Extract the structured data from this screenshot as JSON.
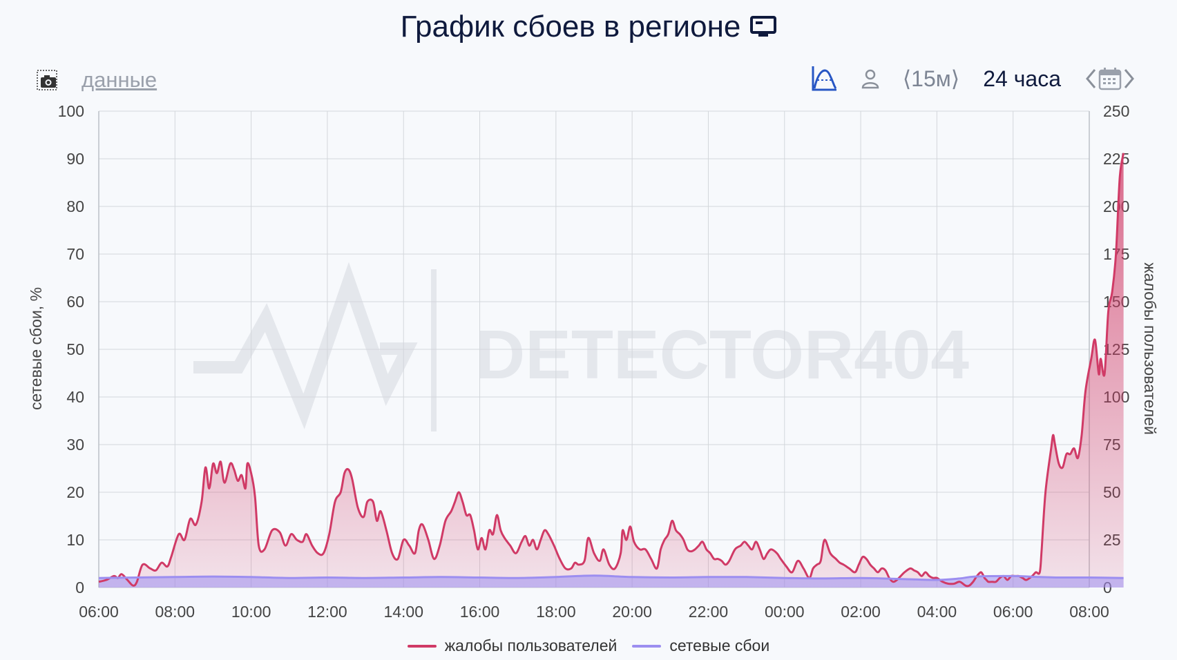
{
  "header": {
    "title": "График сбоев в регионе",
    "data_link": "данные",
    "period_small": "⟨15м⟩",
    "period_large": "24 часа"
  },
  "icons": {
    "screenshot": "camera-icon",
    "title": "monitor-icon",
    "chart_mode": "curve-chart-icon",
    "user": "user-icon",
    "calendar": "calendar-icon",
    "prev": "chevron-left-icon",
    "next": "chevron-right-icon"
  },
  "colors": {
    "complaints": "#d03a66",
    "network": "#9c8ef0",
    "accent": "#2756c4"
  },
  "chart_data": {
    "type": "area",
    "watermark": "DETECTOR404",
    "x_ticks": [
      "06:00",
      "08:00",
      "10:00",
      "12:00",
      "14:00",
      "16:00",
      "18:00",
      "20:00",
      "22:00",
      "00:00",
      "02:00",
      "04:00",
      "06:00",
      "08:00"
    ],
    "xlim_hours": [
      0,
      26
    ],
    "y_left": {
      "label": "сетевые сбои, %",
      "ticks": [
        0,
        10,
        20,
        30,
        40,
        50,
        60,
        70,
        80,
        90,
        100
      ],
      "ylim": [
        0,
        100
      ]
    },
    "y_right": {
      "label": "жалобы пользователей",
      "ticks": [
        0,
        25,
        50,
        75,
        100,
        125,
        150,
        175,
        200,
        225,
        250
      ],
      "ylim": [
        0,
        250
      ]
    },
    "grid": true,
    "legend_position": "bottom-center",
    "series": [
      {
        "name": "жалобы пользователей",
        "axis": "right",
        "points": [
          [
            0,
            3
          ],
          [
            0.2,
            4
          ],
          [
            0.4,
            6
          ],
          [
            0.5,
            5
          ],
          [
            0.6,
            7
          ],
          [
            0.75,
            4
          ],
          [
            0.9,
            1
          ],
          [
            1.0,
            3
          ],
          [
            1.15,
            12
          ],
          [
            1.35,
            10
          ],
          [
            1.5,
            9
          ],
          [
            1.65,
            13
          ],
          [
            1.8,
            11
          ],
          [
            1.9,
            16
          ],
          [
            2.1,
            28
          ],
          [
            2.25,
            25
          ],
          [
            2.4,
            36
          ],
          [
            2.55,
            33
          ],
          [
            2.7,
            45
          ],
          [
            2.8,
            63
          ],
          [
            2.9,
            52
          ],
          [
            3.0,
            65
          ],
          [
            3.1,
            60
          ],
          [
            3.2,
            66
          ],
          [
            3.3,
            55
          ],
          [
            3.45,
            65
          ],
          [
            3.55,
            62
          ],
          [
            3.65,
            56
          ],
          [
            3.75,
            59
          ],
          [
            3.85,
            52
          ],
          [
            3.9,
            65
          ],
          [
            4.0,
            60
          ],
          [
            4.1,
            48
          ],
          [
            4.2,
            22
          ],
          [
            4.35,
            20
          ],
          [
            4.55,
            30
          ],
          [
            4.75,
            29
          ],
          [
            4.9,
            22
          ],
          [
            5.05,
            28
          ],
          [
            5.2,
            25
          ],
          [
            5.35,
            24
          ],
          [
            5.45,
            28
          ],
          [
            5.6,
            22
          ],
          [
            5.75,
            18
          ],
          [
            5.9,
            18
          ],
          [
            6.05,
            28
          ],
          [
            6.2,
            45
          ],
          [
            6.35,
            50
          ],
          [
            6.45,
            60
          ],
          [
            6.55,
            62
          ],
          [
            6.65,
            57
          ],
          [
            6.8,
            42
          ],
          [
            6.95,
            37
          ],
          [
            7.05,
            45
          ],
          [
            7.2,
            45
          ],
          [
            7.3,
            35
          ],
          [
            7.4,
            40
          ],
          [
            7.55,
            30
          ],
          [
            7.7,
            18
          ],
          [
            7.85,
            15
          ],
          [
            8.0,
            25
          ],
          [
            8.15,
            22
          ],
          [
            8.3,
            18
          ],
          [
            8.4,
            30
          ],
          [
            8.5,
            33
          ],
          [
            8.65,
            25
          ],
          [
            8.8,
            15
          ],
          [
            8.95,
            22
          ],
          [
            9.1,
            35
          ],
          [
            9.25,
            40
          ],
          [
            9.35,
            45
          ],
          [
            9.45,
            50
          ],
          [
            9.55,
            45
          ],
          [
            9.65,
            38
          ],
          [
            9.75,
            38
          ],
          [
            9.85,
            30
          ],
          [
            9.95,
            20
          ],
          [
            10.05,
            26
          ],
          [
            10.15,
            20
          ],
          [
            10.25,
            30
          ],
          [
            10.35,
            28
          ],
          [
            10.45,
            38
          ],
          [
            10.55,
            30
          ],
          [
            10.65,
            26
          ],
          [
            10.8,
            22
          ],
          [
            10.95,
            18
          ],
          [
            11.1,
            24
          ],
          [
            11.2,
            27
          ],
          [
            11.3,
            22
          ],
          [
            11.4,
            25
          ],
          [
            11.5,
            20
          ],
          [
            11.6,
            25
          ],
          [
            11.7,
            30
          ],
          [
            11.8,
            28
          ],
          [
            11.95,
            22
          ],
          [
            12.1,
            15
          ],
          [
            12.25,
            10
          ],
          [
            12.4,
            10
          ],
          [
            12.5,
            13
          ],
          [
            12.6,
            12
          ],
          [
            12.75,
            14
          ],
          [
            12.85,
            26
          ],
          [
            13.0,
            18
          ],
          [
            13.15,
            14
          ],
          [
            13.25,
            20
          ],
          [
            13.4,
            12
          ],
          [
            13.55,
            10
          ],
          [
            13.7,
            18
          ],
          [
            13.75,
            30
          ],
          [
            13.85,
            25
          ],
          [
            13.95,
            32
          ],
          [
            14.05,
            24
          ],
          [
            14.2,
            20
          ],
          [
            14.35,
            20
          ],
          [
            14.5,
            15
          ],
          [
            14.65,
            10
          ],
          [
            14.75,
            20
          ],
          [
            14.85,
            25
          ],
          [
            14.95,
            28
          ],
          [
            15.05,
            35
          ],
          [
            15.15,
            30
          ],
          [
            15.25,
            28
          ],
          [
            15.35,
            25
          ],
          [
            15.45,
            20
          ],
          [
            15.55,
            19
          ],
          [
            15.65,
            20
          ],
          [
            15.75,
            22
          ],
          [
            15.85,
            24
          ],
          [
            15.95,
            20
          ],
          [
            16.05,
            18
          ],
          [
            16.15,
            15
          ],
          [
            16.25,
            15
          ],
          [
            16.35,
            14
          ],
          [
            16.45,
            12
          ],
          [
            16.55,
            14
          ],
          [
            16.7,
            20
          ],
          [
            16.85,
            22
          ],
          [
            16.95,
            24
          ],
          [
            17.05,
            22
          ],
          [
            17.15,
            20
          ],
          [
            17.25,
            24
          ],
          [
            17.35,
            20
          ],
          [
            17.45,
            15
          ],
          [
            17.55,
            18
          ],
          [
            17.65,
            20
          ],
          [
            17.8,
            18
          ],
          [
            17.9,
            15
          ],
          [
            18.05,
            11
          ],
          [
            18.2,
            8
          ],
          [
            18.35,
            14
          ],
          [
            18.5,
            10
          ],
          [
            18.65,
            5
          ],
          [
            18.75,
            10
          ],
          [
            18.85,
            12
          ],
          [
            18.95,
            14
          ],
          [
            19.05,
            25
          ],
          [
            19.2,
            18
          ],
          [
            19.35,
            15
          ],
          [
            19.45,
            13
          ],
          [
            19.55,
            12
          ],
          [
            19.7,
            10
          ],
          [
            19.85,
            8
          ],
          [
            19.95,
            12
          ],
          [
            20.05,
            16
          ],
          [
            20.15,
            15
          ],
          [
            20.25,
            12
          ],
          [
            20.35,
            10
          ],
          [
            20.45,
            8
          ],
          [
            20.55,
            10
          ],
          [
            20.65,
            9
          ],
          [
            20.75,
            5
          ],
          [
            20.85,
            3
          ],
          [
            20.95,
            4
          ],
          [
            21.05,
            6
          ],
          [
            21.15,
            8
          ],
          [
            21.3,
            10
          ],
          [
            21.4,
            9
          ],
          [
            21.5,
            8
          ],
          [
            21.6,
            6
          ],
          [
            21.7,
            8
          ],
          [
            21.8,
            6
          ],
          [
            21.9,
            5
          ],
          [
            22.0,
            5
          ],
          [
            22.15,
            3
          ],
          [
            22.3,
            2
          ],
          [
            22.45,
            2
          ],
          [
            22.6,
            3
          ],
          [
            22.75,
            1
          ],
          [
            22.85,
            1
          ],
          [
            22.95,
            3
          ],
          [
            23.05,
            6
          ],
          [
            23.15,
            8
          ],
          [
            23.2,
            7
          ],
          [
            23.25,
            5
          ],
          [
            23.3,
            4
          ],
          [
            23.35,
            3
          ],
          [
            23.45,
            3
          ],
          [
            23.55,
            3
          ],
          [
            23.65,
            5
          ],
          [
            23.75,
            6
          ],
          [
            23.85,
            4
          ],
          [
            23.95,
            6
          ],
          [
            24.05,
            6
          ],
          [
            24.15,
            6
          ],
          [
            24.25,
            5
          ],
          [
            24.35,
            4
          ],
          [
            24.5,
            6
          ],
          [
            24.6,
            8
          ],
          [
            24.7,
            8
          ],
          [
            24.75,
            20
          ],
          [
            24.85,
            50
          ],
          [
            25.0,
            73
          ],
          [
            25.05,
            80
          ],
          [
            25.1,
            75
          ],
          [
            25.2,
            65
          ],
          [
            25.3,
            63
          ],
          [
            25.4,
            70
          ],
          [
            25.5,
            70
          ],
          [
            25.6,
            73
          ],
          [
            25.7,
            68
          ],
          [
            25.8,
            80
          ],
          [
            25.9,
            103
          ],
          [
            26.05,
            120
          ],
          [
            26.15,
            130
          ],
          [
            26.25,
            112
          ],
          [
            26.3,
            120
          ],
          [
            26.4,
            112
          ],
          [
            26.5,
            145
          ],
          [
            26.6,
            155
          ],
          [
            26.7,
            175
          ],
          [
            26.8,
            215
          ],
          [
            26.9,
            228
          ]
        ]
      },
      {
        "name": "сетевые сбои",
        "axis": "left",
        "points": [
          [
            0,
            2
          ],
          [
            1.0,
            2.1
          ],
          [
            2.0,
            2.2
          ],
          [
            3.0,
            2.3
          ],
          [
            4.0,
            2.2
          ],
          [
            5.0,
            2.0
          ],
          [
            6.0,
            2.1
          ],
          [
            7.0,
            2.0
          ],
          [
            8.0,
            2.1
          ],
          [
            9.0,
            2.2
          ],
          [
            10.0,
            2.1
          ],
          [
            11.0,
            2.0
          ],
          [
            12.0,
            2.2
          ],
          [
            13.0,
            2.5
          ],
          [
            14.0,
            2.2
          ],
          [
            15.0,
            2.1
          ],
          [
            16.0,
            2.2
          ],
          [
            17.0,
            2.2
          ],
          [
            18.0,
            2.0
          ],
          [
            19.0,
            1.9
          ],
          [
            20.0,
            2.0
          ],
          [
            21.0,
            1.8
          ],
          [
            22.0,
            1.6
          ],
          [
            22.6,
            1.9
          ],
          [
            23.0,
            2.3
          ],
          [
            24.0,
            2.4
          ],
          [
            24.7,
            2.2
          ],
          [
            25.2,
            2.1
          ],
          [
            26.0,
            2.1
          ],
          [
            26.9,
            2.0
          ]
        ]
      }
    ]
  },
  "legend": {
    "items": [
      {
        "label": "жалобы пользователей"
      },
      {
        "label": "сетевые сбои"
      }
    ]
  }
}
